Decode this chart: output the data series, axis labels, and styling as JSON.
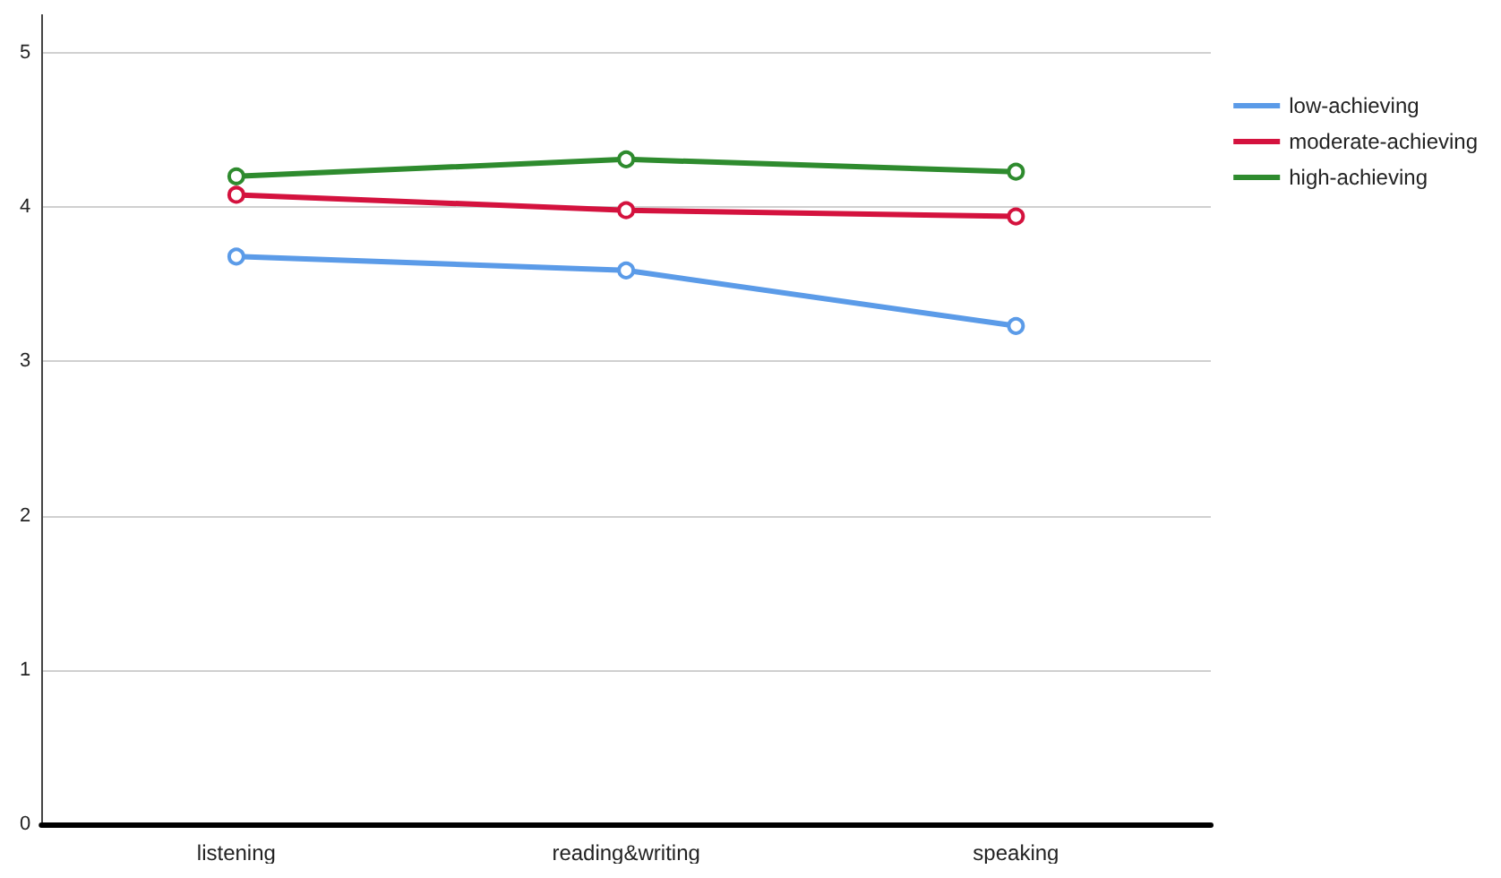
{
  "chart_data": {
    "type": "line",
    "categories": [
      "listening",
      "reading&writing",
      "speaking"
    ],
    "series": [
      {
        "name": "low-achieving",
        "color": "#5b9be8",
        "values": [
          3.68,
          3.59,
          3.23
        ]
      },
      {
        "name": "moderate-achieving",
        "color": "#d4123e",
        "values": [
          4.08,
          3.98,
          3.94
        ]
      },
      {
        "name": "high-achieving",
        "color": "#2e8b2e",
        "values": [
          4.2,
          4.31,
          4.23
        ]
      }
    ],
    "ylim": [
      0,
      5.25
    ],
    "yticks": [
      0,
      1,
      2,
      3,
      4,
      5
    ],
    "grid": "y",
    "legend": "right",
    "marker": "circle",
    "line_style": "solid"
  }
}
